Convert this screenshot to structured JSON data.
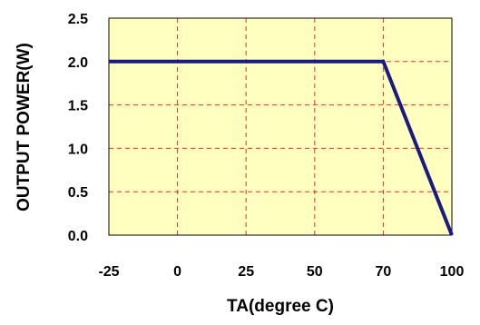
{
  "chart_data": {
    "type": "line",
    "title": "",
    "xlabel": "TA(degree C)",
    "ylabel": "OUTPUT POWER(W)",
    "x_ticks": [
      "-25",
      "0",
      "25",
      "50",
      "70",
      "100"
    ],
    "y_ticks": [
      "2.5",
      "2.0",
      "1.5",
      "1.0",
      "0.5",
      "0.0"
    ],
    "ylim": [
      0,
      2.5
    ],
    "grid": true,
    "series": [
      {
        "x": [
          "-25",
          "70",
          "100"
        ],
        "y": [
          2.0,
          2.0,
          0.0
        ]
      }
    ],
    "colors": {
      "plot_background": "#FFFFC0",
      "grid": "#E03030",
      "line": "#1A1A80",
      "frame": "#000000"
    }
  }
}
